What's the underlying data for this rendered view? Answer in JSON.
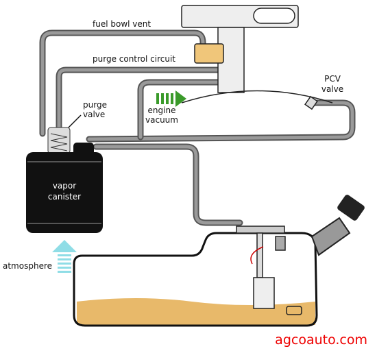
{
  "labels": {
    "fuel_bowl_vent": "fuel bowl vent",
    "purge_control_circuit": "purge control circuit",
    "purge_valve": [
      "purge",
      "valve"
    ],
    "engine_vacuum": [
      "engine",
      "vacuum"
    ],
    "pcv_valve": [
      "PCV",
      "valve"
    ],
    "vapor_canister": [
      "vapor",
      "canister"
    ],
    "atmosphere": "atmosphere"
  },
  "watermark": "agcoauto.com"
}
